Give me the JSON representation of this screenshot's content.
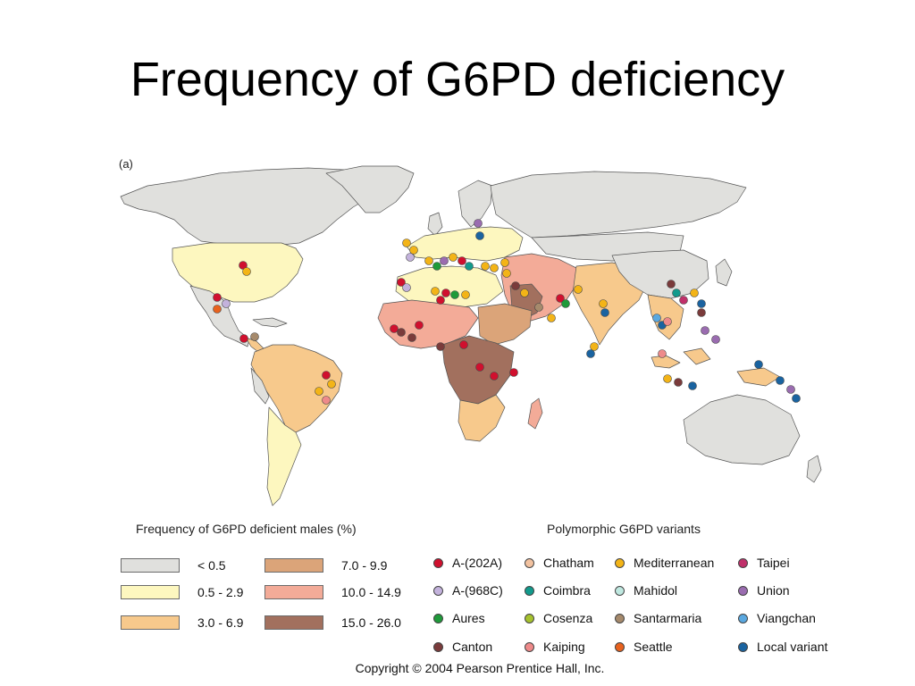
{
  "title": "Frequency of G6PD deficiency",
  "panel_label": "(a)",
  "colors": {
    "ocean": "#ffffff",
    "border": "#555555",
    "lt_0_5": "#e0e0dd",
    "f_0_5_2_9": "#fdf7bf",
    "f_3_0_6_9": "#f7c98c",
    "f_7_0_9_9": "#dba479",
    "f_10_0_14_9": "#f3ab98",
    "f_15_0_26_0": "#a2705e"
  },
  "frequency_legend": {
    "heading": "Frequency of G6PD deficient males (%)",
    "items": [
      {
        "label": "< 0.5",
        "color": "#e0e0dd"
      },
      {
        "label": "0.5 - 2.9",
        "color": "#fdf7bf"
      },
      {
        "label": "3.0 - 6.9",
        "color": "#f7c98c"
      },
      {
        "label": "7.0 - 9.9",
        "color": "#dba479"
      },
      {
        "label": "10.0 - 14.9",
        "color": "#f3ab98"
      },
      {
        "label": "15.0 - 26.0",
        "color": "#a2705e"
      }
    ]
  },
  "variants_legend": {
    "heading": "Polymorphic G6PD variants",
    "items": [
      {
        "label": "A-(202A)",
        "color": "#d0102e"
      },
      {
        "label": "A-(968C)",
        "color": "#c3b2dc"
      },
      {
        "label": "Aures",
        "color": "#1f9a3a"
      },
      {
        "label": "Canton",
        "color": "#7a3b3b"
      },
      {
        "label": "Chatham",
        "color": "#f2c2a0"
      },
      {
        "label": "Coimbra",
        "color": "#129a8c"
      },
      {
        "label": "Cosenza",
        "color": "#a6c22e"
      },
      {
        "label": "Kaiping",
        "color": "#ee8a8a"
      },
      {
        "label": "Mediterranean",
        "color": "#f3b417"
      },
      {
        "label": "Mahidol",
        "color": "#bfe8e0"
      },
      {
        "label": "Santarmaria",
        "color": "#a68a6c"
      },
      {
        "label": "Seattle",
        "color": "#e8621e"
      },
      {
        "label": "Taipei",
        "color": "#c0306a"
      },
      {
        "label": "Union",
        "color": "#9a6cb0"
      },
      {
        "label": "Viangchan",
        "color": "#5aa8e0"
      },
      {
        "label": "Local variant",
        "color": "#1a63a0"
      }
    ]
  },
  "copyright": "Copyright © 2004 Pearson Prentice Hall, Inc."
}
